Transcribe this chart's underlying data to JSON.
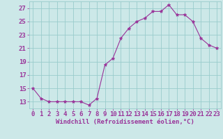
{
  "x": [
    0,
    1,
    2,
    3,
    4,
    5,
    6,
    7,
    8,
    9,
    10,
    11,
    12,
    13,
    14,
    15,
    16,
    17,
    18,
    19,
    20,
    21,
    22,
    23
  ],
  "y": [
    15,
    13.5,
    13,
    13,
    13,
    13,
    13,
    12.5,
    13.5,
    18.5,
    19.5,
    22.5,
    24,
    25,
    25.5,
    26.5,
    26.5,
    27.5,
    26,
    26,
    25,
    22.5,
    21.5,
    21
  ],
  "line_color": "#993399",
  "marker_color": "#993399",
  "bg_color": "#cce8e8",
  "grid_color": "#99cccc",
  "xlabel": "Windchill (Refroidissement éolien,°C)",
  "xlabel_color": "#993399",
  "ytick_labels": [
    "13",
    "15",
    "17",
    "19",
    "21",
    "23",
    "25",
    "27"
  ],
  "ytick_vals": [
    13,
    15,
    17,
    19,
    21,
    23,
    25,
    27
  ],
  "ylim": [
    12.0,
    28.0
  ],
  "xlim": [
    -0.5,
    23.5
  ],
  "tick_color": "#993399",
  "label_fontsize": 6.5,
  "tick_fontsize": 6.5
}
